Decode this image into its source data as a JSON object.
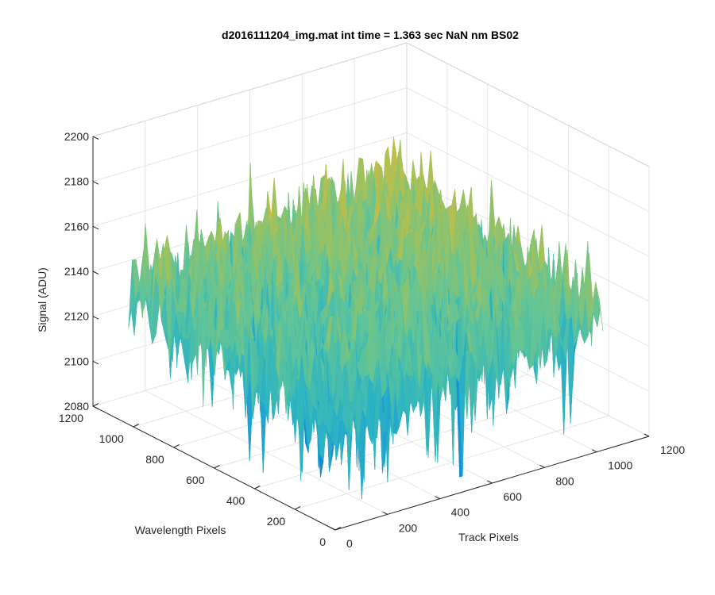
{
  "chart_data": {
    "type": "surface",
    "title": "d2016111204_img.mat int time = 1.363 sec  NaN nm BS02",
    "xlabel": "Track Pixels",
    "ylabel": "Wavelength Pixels",
    "zlabel": "Signal (ADU)",
    "xlim": [
      0,
      1200
    ],
    "ylim": [
      0,
      1200
    ],
    "zlim": [
      2080,
      2200
    ],
    "x_ticks": [
      0,
      200,
      400,
      600,
      800,
      1000,
      1200
    ],
    "y_ticks": [
      0,
      200,
      400,
      600,
      800,
      1000,
      1200
    ],
    "z_ticks": [
      2080,
      2100,
      2120,
      2140,
      2160,
      2180,
      2200
    ],
    "x_tick_labels": [
      "0",
      "200",
      "400",
      "600",
      "800",
      "1000",
      "1200"
    ],
    "y_tick_labels": [
      "0",
      "200",
      "400",
      "600",
      "800",
      "1000",
      "1200"
    ],
    "z_tick_labels": [
      "2080",
      "2100",
      "2120",
      "2140",
      "2160",
      "2180",
      "2200"
    ],
    "data_extent": {
      "x": [
        0,
        1024
      ],
      "y": [
        0,
        1024
      ]
    },
    "surface_approx": {
      "mean_signal": 2140,
      "noise_amplitude_adu": 18,
      "min_signal": 2085,
      "max_signal": 2190,
      "higher_toward": "large x and large y"
    },
    "colormap": "parula",
    "colormap_stops": [
      "#0072bd",
      "#1990d8",
      "#2ab3c4",
      "#5ec49a",
      "#a2c25b",
      "#e0b83c",
      "#f0d23e"
    ],
    "grid": true,
    "legend": false
  }
}
